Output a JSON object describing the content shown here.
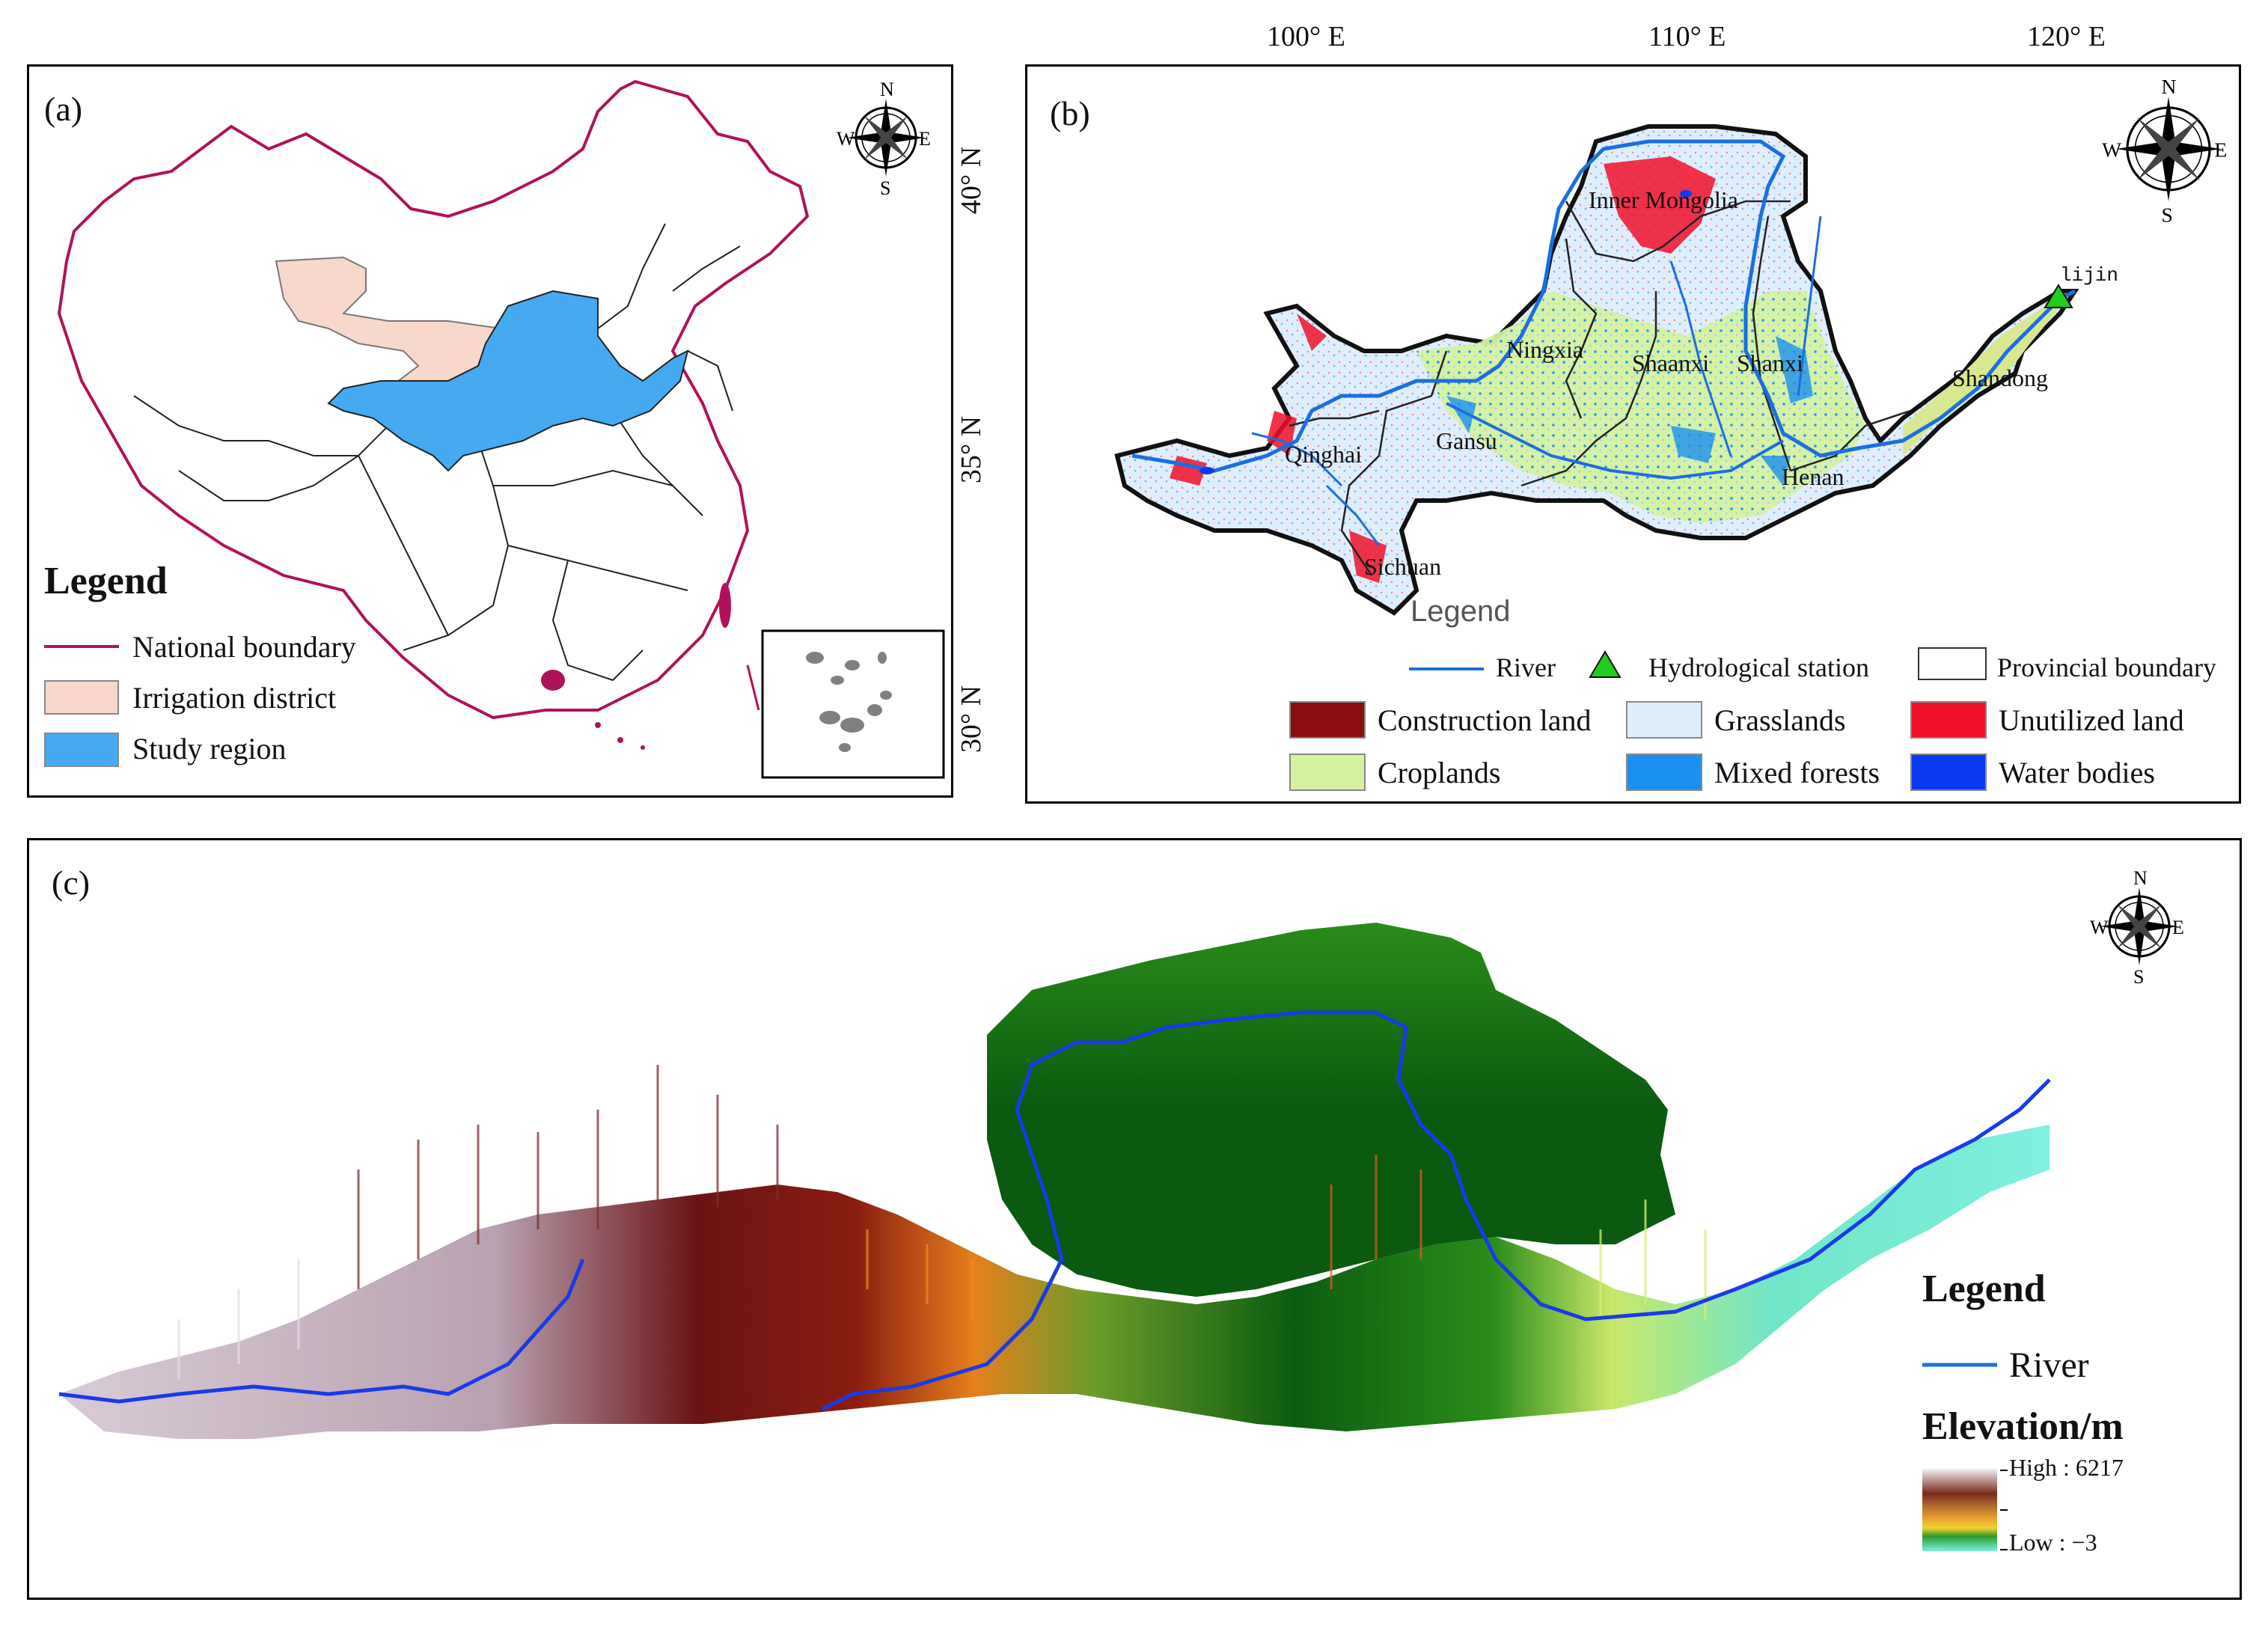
{
  "panel_a": {
    "label": "(a)",
    "legend_title": "Legend",
    "legend_items": [
      {
        "name": "National boundary",
        "color": "#b0125a"
      },
      {
        "name": "Irrigation district",
        "color": "#f9d8cc"
      },
      {
        "name": "Study region",
        "color": "#45aaf2"
      }
    ],
    "compass": {
      "n": "N",
      "e": "E",
      "s": "S",
      "w": "W"
    }
  },
  "panel_b": {
    "label": "(b)",
    "lon_ticks": [
      "100° E",
      "110° E",
      "120° E"
    ],
    "lat_ticks": [
      "40° N",
      "35° N",
      "30° N"
    ],
    "provinces": [
      "Inner Mongolia",
      "Ningxia",
      "Shaanxi",
      "Shanxi",
      "Shandong",
      "Gansu",
      "Qinghai",
      "Henan",
      "Sichuan"
    ],
    "station": "lijin",
    "legend_title": "Legend",
    "legend_row1": [
      {
        "name": "River",
        "color": "#1a6fe0"
      },
      {
        "name": "Hydrological station",
        "color": "#22cc22"
      },
      {
        "name": "Provincial boundary",
        "color": "#ffffff"
      }
    ],
    "legend_classes": [
      {
        "name": "Construction land",
        "color": "#8b0e0e"
      },
      {
        "name": "Grasslands",
        "color": "#dfeefc"
      },
      {
        "name": "Unutilized land",
        "color": "#f0102a"
      },
      {
        "name": "Croplands",
        "color": "#d4f2a0"
      },
      {
        "name": "Mixed forests",
        "color": "#1a90f0"
      },
      {
        "name": "Water bodies",
        "color": "#0a3af0"
      }
    ],
    "compass": {
      "n": "N",
      "e": "E",
      "s": "S",
      "w": "W"
    }
  },
  "panel_c": {
    "label": "(c)",
    "legend_title": "Legend",
    "river_label": "River",
    "river_color": "#1a6fe0",
    "elevation_title": "Elevation/m",
    "high_label": "High : 6217",
    "low_label": "Low : −3",
    "compass": {
      "n": "N",
      "e": "E",
      "s": "S",
      "w": "W"
    }
  }
}
